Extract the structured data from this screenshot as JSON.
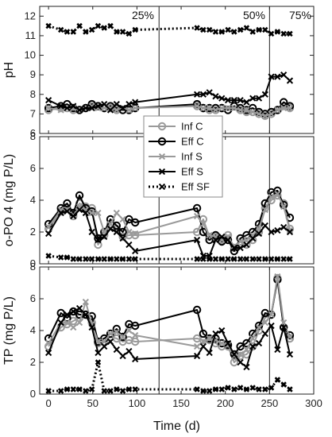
{
  "xlabel": "Time (d)",
  "x_ticks": [
    0,
    50,
    100,
    150,
    200,
    250,
    300
  ],
  "x_range": [
    -10,
    300
  ],
  "phase_lines": [
    {
      "x": 125,
      "label": "25%"
    },
    {
      "x": 250,
      "label": "50%"
    },
    {
      "x": null,
      "label": "75%"
    }
  ],
  "legend": [
    "Inf C",
    "Eff C",
    "Inf S",
    "Eff S",
    "Eff SF"
  ],
  "styles": {
    "Inf C": {
      "color": "#9a9a9a",
      "marker": "circle",
      "dash": ""
    },
    "Eff C": {
      "color": "#000000",
      "marker": "circle",
      "dash": ""
    },
    "Inf S": {
      "color": "#9a9a9a",
      "marker": "x",
      "dash": ""
    },
    "Eff S": {
      "color": "#000000",
      "marker": "x",
      "dash": ""
    },
    "Eff SF": {
      "color": "#000000",
      "marker": "x",
      "dash": "dotted"
    }
  },
  "chart_data": [
    {
      "type": "line",
      "ylabel": "pH",
      "ylim": [
        6,
        12.5
      ],
      "yticks": [
        6,
        7,
        8,
        9,
        10,
        11,
        12
      ],
      "x": [
        0,
        14,
        21,
        28,
        35,
        42,
        49,
        56,
        63,
        70,
        77,
        84,
        91,
        98,
        119,
        126,
        133,
        140,
        147,
        154,
        161,
        168,
        175,
        182,
        189,
        196,
        203,
        210,
        217,
        224,
        231,
        238,
        245,
        252,
        259,
        266,
        273
      ],
      "series": [
        {
          "name": "Inf C",
          "values": [
            7.2,
            7.3,
            7.3,
            7.2,
            7.2,
            7.3,
            7.4,
            7.4,
            7.3,
            7.3,
            7.2,
            7.2,
            7.2,
            7.3,
            null,
            null,
            null,
            null,
            null,
            null,
            null,
            7.4,
            7.3,
            7.2,
            7.2,
            7.3,
            7.2,
            7.4,
            7.2,
            7.1,
            7.1,
            7.0,
            6.9,
            7.0,
            7.2,
            7.4,
            7.3
          ]
        },
        {
          "name": "Eff C",
          "values": [
            7.3,
            7.4,
            7.5,
            7.3,
            7.2,
            7.3,
            7.5,
            7.4,
            7.3,
            7.4,
            7.3,
            7.2,
            7.2,
            7.3,
            null,
            null,
            null,
            null,
            null,
            null,
            null,
            7.5,
            7.3,
            7.3,
            7.3,
            7.3,
            7.2,
            7.4,
            7.3,
            7.2,
            7.3,
            7.1,
            7.0,
            7.1,
            7.2,
            7.6,
            7.4
          ]
        },
        {
          "name": "Inf S",
          "values": [
            7.3,
            7.2,
            7.3,
            7.3,
            7.2,
            7.3,
            7.4,
            7.3,
            7.3,
            7.3,
            7.2,
            7.3,
            7.2,
            7.3,
            null,
            null,
            null,
            null,
            null,
            null,
            null,
            7.4,
            7.3,
            7.3,
            7.2,
            7.3,
            7.3,
            7.3,
            7.2,
            7.2,
            7.1,
            7.0,
            6.9,
            7.0,
            7.2,
            7.3,
            7.3
          ]
        },
        {
          "name": "Eff S",
          "values": [
            7.7,
            7.4,
            7.3,
            7.4,
            7.2,
            7.3,
            7.3,
            7.4,
            7.5,
            7.2,
            7.5,
            7.3,
            7.5,
            7.6,
            null,
            null,
            null,
            null,
            null,
            null,
            null,
            8.0,
            8.0,
            8.1,
            7.9,
            7.8,
            7.7,
            7.7,
            7.7,
            7.6,
            7.8,
            7.8,
            8.0,
            8.9,
            8.9,
            9.0,
            8.7
          ]
        },
        {
          "name": "Eff SF",
          "values": [
            11.5,
            11.3,
            11.2,
            11.2,
            11.5,
            11.2,
            11.3,
            11.5,
            11.4,
            11.5,
            11.2,
            11.2,
            11.1,
            11.3,
            null,
            null,
            null,
            null,
            null,
            null,
            null,
            11.4,
            11.3,
            11.3,
            11.2,
            11.2,
            11.3,
            11.2,
            11.3,
            11.4,
            11.2,
            11.3,
            11.3,
            11.1,
            11.2,
            11.1,
            11.1
          ]
        }
      ]
    },
    {
      "type": "line",
      "ylabel": "o-PO 4 (mg P/L)",
      "ylim": [
        0,
        8
      ],
      "yticks": [
        0,
        2,
        4,
        6,
        8
      ],
      "x": [
        0,
        14,
        21,
        28,
        35,
        42,
        49,
        56,
        63,
        70,
        77,
        84,
        91,
        98,
        119,
        126,
        133,
        140,
        147,
        154,
        161,
        168,
        175,
        182,
        189,
        196,
        203,
        210,
        217,
        224,
        231,
        238,
        245,
        252,
        259,
        266,
        273
      ],
      "series": [
        {
          "name": "Inf C",
          "values": [
            2.2,
            3.3,
            3.5,
            3.0,
            3.8,
            3.6,
            3.5,
            1.2,
            1.8,
            2.5,
            2.2,
            1.7,
            1.8,
            1.8,
            null,
            null,
            null,
            null,
            null,
            null,
            null,
            2.0,
            2.8,
            1.7,
            1.7,
            1.5,
            1.8,
            1.0,
            1.2,
            1.2,
            1.5,
            2.0,
            3.5,
            4.0,
            4.3,
            3.8,
            2.2
          ]
        },
        {
          "name": "Eff C",
          "values": [
            2.5,
            3.5,
            3.8,
            3.2,
            4.3,
            3.5,
            3.3,
            1.6,
            2.0,
            2.8,
            2.4,
            2.0,
            2.8,
            2.6,
            null,
            null,
            null,
            null,
            null,
            null,
            null,
            3.5,
            2.0,
            1.5,
            1.8,
            1.4,
            1.5,
            0.8,
            1.6,
            1.8,
            2.0,
            2.5,
            3.8,
            4.5,
            4.6,
            3.7,
            2.9
          ]
        },
        {
          "name": "Inf S",
          "values": [
            2.3,
            3.4,
            3.4,
            3.0,
            3.6,
            3.4,
            3.2,
            3.2,
            2.0,
            2.5,
            3.2,
            2.8,
            2.0,
            1.9,
            null,
            null,
            null,
            null,
            null,
            null,
            null,
            3.0,
            2.5,
            1.8,
            1.7,
            1.5,
            1.7,
            1.1,
            1.4,
            1.5,
            1.8,
            2.2,
            3.4,
            4.2,
            4.4,
            3.6,
            2.1
          ]
        },
        {
          "name": "Eff S",
          "values": [
            1.9,
            3.2,
            3.3,
            3.0,
            3.4,
            3.2,
            2.0,
            1.5,
            1.7,
            2.2,
            2.0,
            1.6,
            1.2,
            0.8,
            null,
            null,
            null,
            null,
            null,
            null,
            null,
            1.5,
            0.5,
            0.5,
            1.5,
            1.7,
            1.5,
            1.0,
            1.0,
            1.2,
            1.6,
            1.9,
            2.4,
            2.0,
            2.1,
            2.3,
            2.0
          ]
        },
        {
          "name": "Eff SF",
          "values": [
            0.5,
            0.4,
            0.4,
            0.3,
            0.3,
            0.3,
            0.3,
            0.3,
            0.3,
            0.3,
            0.3,
            0.3,
            0.3,
            0.3,
            null,
            null,
            null,
            null,
            null,
            null,
            null,
            0.3,
            0.3,
            0.3,
            0.3,
            0.3,
            0.3,
            0.3,
            0.3,
            0.3,
            0.3,
            0.3,
            0.3,
            0.3,
            0.3,
            0.3,
            0.3
          ]
        }
      ]
    },
    {
      "type": "line",
      "ylabel": "TP (mg P/L)",
      "ylim": [
        0,
        8
      ],
      "yticks": [
        0,
        2,
        4,
        6,
        8
      ],
      "x": [
        0,
        14,
        21,
        28,
        35,
        42,
        49,
        56,
        63,
        70,
        77,
        84,
        91,
        98,
        119,
        126,
        133,
        140,
        147,
        154,
        161,
        168,
        175,
        182,
        189,
        196,
        203,
        210,
        217,
        224,
        231,
        238,
        245,
        252,
        259,
        266,
        273
      ],
      "series": [
        {
          "name": "Inf C",
          "values": [
            3.0,
            4.2,
            4.4,
            4.6,
            4.8,
            5.0,
            4.5,
            3.2,
            3.3,
            3.6,
            3.5,
            3.3,
            3.4,
            3.3,
            null,
            null,
            null,
            null,
            null,
            null,
            null,
            3.5,
            3.4,
            3.4,
            3.2,
            3.0,
            3.0,
            2.0,
            2.4,
            2.5,
            3.0,
            4.0,
            4.8,
            5.0,
            7.3,
            4.2,
            3.5
          ]
        },
        {
          "name": "Eff C",
          "values": [
            3.5,
            5.1,
            4.8,
            5.2,
            5.0,
            5.0,
            4.9,
            3.3,
            3.5,
            3.8,
            4.1,
            3.6,
            4.4,
            4.3,
            null,
            null,
            null,
            null,
            null,
            null,
            null,
            5.3,
            3.8,
            3.5,
            3.5,
            3.2,
            3.1,
            2.5,
            3.0,
            3.2,
            3.8,
            4.3,
            5.1,
            5.0,
            7.2,
            4.2,
            3.7
          ]
        },
        {
          "name": "Inf S",
          "values": [
            3.2,
            4.5,
            4.5,
            4.2,
            4.5,
            5.8,
            4.4,
            3.3,
            3.3,
            3.8,
            3.9,
            3.6,
            4.0,
            3.7,
            null,
            null,
            null,
            null,
            null,
            null,
            null,
            3.0,
            3.3,
            3.5,
            3.4,
            3.2,
            3.1,
            2.4,
            2.5,
            2.8,
            3.5,
            4.2,
            4.5,
            5.0,
            7.4,
            4.5,
            3.6
          ]
        },
        {
          "name": "Eff S",
          "values": [
            2.6,
            4.5,
            5.0,
            5.2,
            5.4,
            5.0,
            4.2,
            2.6,
            3.0,
            3.3,
            2.8,
            2.4,
            2.7,
            2.2,
            null,
            null,
            null,
            null,
            null,
            null,
            null,
            2.4,
            3.0,
            2.6,
            3.8,
            4.0,
            3.2,
            2.5,
            2.0,
            1.7,
            3.0,
            3.2,
            3.8,
            4.3,
            2.8,
            4.2,
            2.5
          ]
        },
        {
          "name": "Eff SF",
          "values": [
            0.2,
            0.2,
            0.3,
            0.3,
            0.3,
            0.2,
            0.3,
            2.0,
            0.2,
            0.2,
            0.3,
            0.2,
            0.3,
            0.3,
            null,
            null,
            null,
            null,
            null,
            null,
            null,
            0.3,
            0.2,
            0.2,
            0.3,
            0.3,
            0.4,
            0.3,
            0.4,
            0.3,
            0.4,
            0.3,
            0.3,
            0.4,
            0.9,
            0.6,
            0.3
          ]
        }
      ]
    }
  ]
}
